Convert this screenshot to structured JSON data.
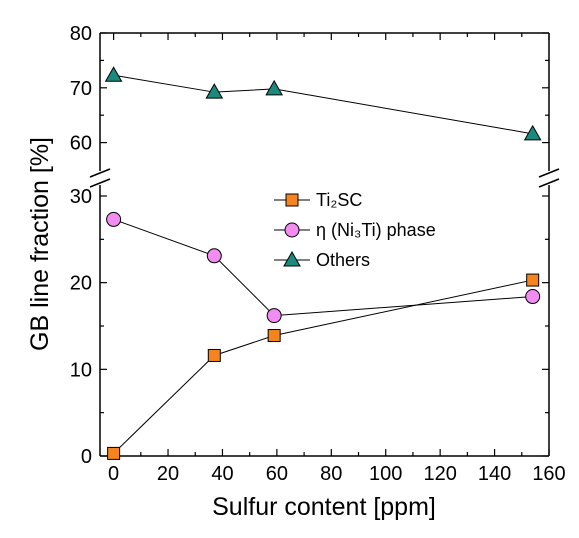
{
  "chart_data": {
    "type": "line",
    "xlabel": "Sulfur content [ppm]",
    "ylabel": "GB line fraction [%]",
    "xlim": [
      -5,
      160
    ],
    "x_ticks": [
      "0",
      "20",
      "40",
      "60",
      "80",
      "100",
      "120",
      "140",
      "160"
    ],
    "ylim_lower": [
      0,
      30
    ],
    "ylim_upper": [
      55,
      80
    ],
    "y_ticks_lower": [
      "0",
      "10",
      "20",
      "30"
    ],
    "y_ticks_upper": [
      "60",
      "70",
      "80"
    ],
    "axis_break": true,
    "grid": false,
    "legend_position": "center-right",
    "series": [
      {
        "name": "Ti₂SC",
        "marker": "square",
        "color": "#f5841f",
        "x": [
          0,
          37,
          59,
          154
        ],
        "y": [
          0.3,
          11.6,
          13.9,
          20.3
        ]
      },
      {
        "name": "η (Ni₃Ti) phase",
        "marker": "circle",
        "color": "#f18cf0",
        "x": [
          0,
          37,
          59,
          154
        ],
        "y": [
          27.3,
          23.1,
          16.2,
          18.4
        ]
      },
      {
        "name": "Others",
        "marker": "triangle",
        "color": "#1b8a7e",
        "x": [
          0,
          37,
          59,
          154
        ],
        "y": [
          72.3,
          69.2,
          69.8,
          61.6
        ]
      }
    ]
  }
}
